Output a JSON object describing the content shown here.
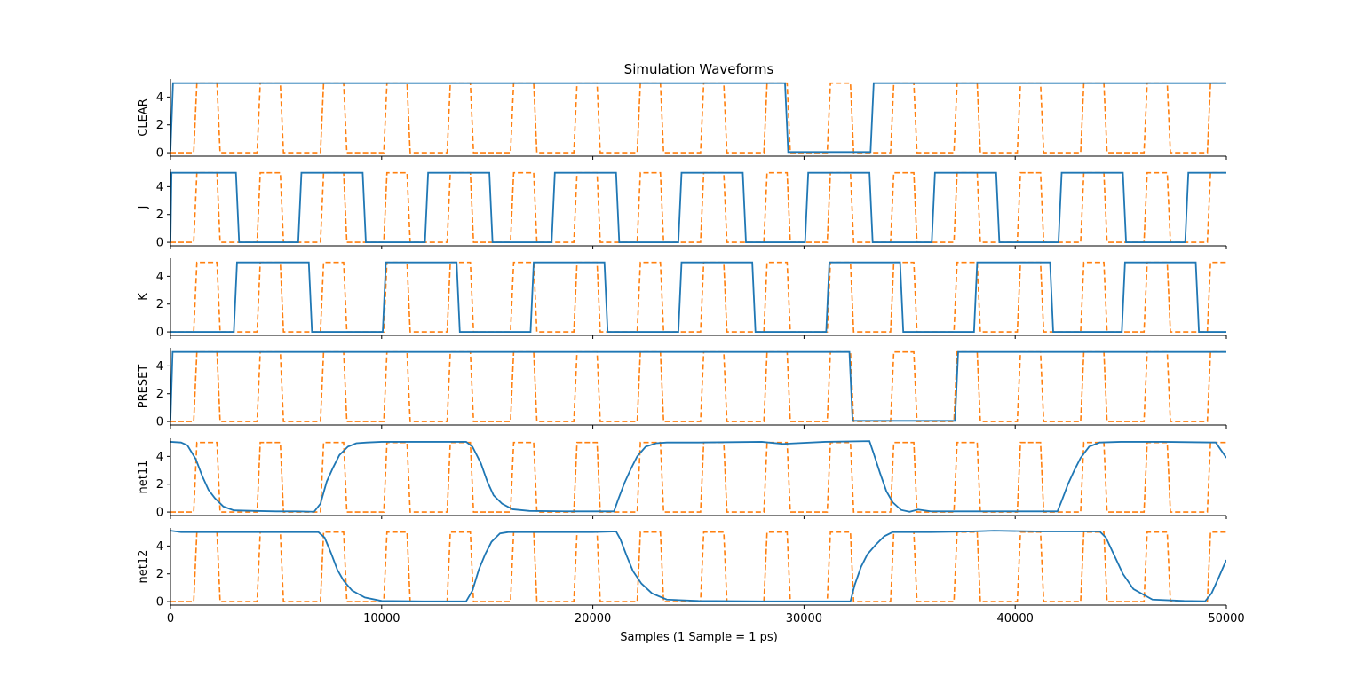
{
  "chart_data": {
    "type": "line",
    "title": "Simulation Waveforms",
    "xlabel": "Samples (1 Sample = 1 ps)",
    "xlim": [
      0,
      50000
    ],
    "x_ticks": [
      0,
      10000,
      20000,
      30000,
      40000,
      50000
    ],
    "y_ticks": [
      0,
      2,
      4
    ],
    "ylim": [
      -0.25,
      5.3
    ],
    "series_styles": {
      "signal": {
        "color": "#1f77b4",
        "dash": "solid"
      },
      "clock": {
        "color": "#ff7f0e",
        "dash": "dashed"
      }
    },
    "clock": {
      "name": "clock",
      "high": 5,
      "low": 0,
      "first_rise": 1100,
      "period": 3000,
      "high_time": 1100,
      "edge_time": 150
    },
    "panels": [
      {
        "ylabel": "CLEAR",
        "signal": {
          "x": [
            0,
            120,
            29100,
            29250,
            33150,
            33300,
            50000
          ],
          "y": [
            0.1,
            5,
            5,
            0.05,
            0.05,
            5,
            5
          ]
        }
      },
      {
        "ylabel": "J",
        "signal": {
          "x": [
            0,
            50,
            3100,
            3250,
            6050,
            6200,
            9100,
            9250,
            12050,
            12200,
            15100,
            15250,
            18050,
            18200,
            21100,
            21250,
            24050,
            24200,
            27100,
            27250,
            30050,
            30200,
            33100,
            33250,
            36050,
            36200,
            39100,
            39250,
            42050,
            42200,
            45100,
            45250,
            48050,
            48200,
            50000
          ],
          "y": [
            0,
            5,
            5,
            0,
            0,
            5,
            5,
            0,
            0,
            5,
            5,
            0,
            0,
            5,
            5,
            0,
            0,
            5,
            5,
            0,
            0,
            5,
            5,
            0,
            0,
            5,
            5,
            0,
            0,
            5,
            5,
            0,
            0,
            5,
            5
          ]
        }
      },
      {
        "ylabel": "K",
        "signal": {
          "x": [
            0,
            3000,
            3150,
            6550,
            6700,
            10050,
            10200,
            13550,
            13700,
            17050,
            17200,
            20550,
            20700,
            24050,
            24200,
            27550,
            27700,
            31050,
            31200,
            34550,
            34700,
            38050,
            38200,
            41650,
            41800,
            45050,
            45200,
            48550,
            48700,
            50000
          ],
          "y": [
            0,
            0,
            5,
            5,
            0,
            0,
            5,
            5,
            0,
            0,
            5,
            5,
            0,
            0,
            5,
            5,
            0,
            0,
            5,
            5,
            0,
            0,
            5,
            5,
            0,
            0,
            5,
            5,
            0,
            0
          ]
        }
      },
      {
        "ylabel": "PRESET",
        "signal": {
          "x": [
            0,
            100,
            32150,
            32300,
            37150,
            37300,
            50000
          ],
          "y": [
            0.1,
            5,
            5,
            0.05,
            0.05,
            5,
            5
          ]
        }
      },
      {
        "ylabel": "net11",
        "signal": {
          "x": [
            0,
            500,
            800,
            1200,
            1500,
            1800,
            2100,
            2500,
            3000,
            4000,
            5000,
            6000,
            6800,
            7100,
            7400,
            7700,
            8000,
            8400,
            8800,
            9300,
            10000,
            12000,
            14000,
            14300,
            14700,
            15000,
            15300,
            15700,
            16200,
            17000,
            19000,
            21000,
            21200,
            21500,
            21800,
            22100,
            22500,
            23000,
            23500,
            25000,
            28000,
            29000,
            31000,
            33100,
            33300,
            33600,
            33900,
            34200,
            34600,
            35000,
            35400,
            36000,
            38000,
            42000,
            42200,
            42500,
            42800,
            43100,
            43500,
            44000,
            45000,
            47000,
            49500,
            50000
          ],
          "y": [
            5.05,
            5.0,
            4.8,
            3.8,
            2.6,
            1.6,
            1.0,
            0.4,
            0.12,
            0.08,
            0.05,
            0.05,
            0.02,
            0.6,
            2.2,
            3.2,
            4.1,
            4.7,
            4.95,
            5.0,
            5.05,
            5.05,
            5.05,
            4.7,
            3.5,
            2.2,
            1.2,
            0.6,
            0.2,
            0.08,
            0.05,
            0.05,
            0.9,
            2.1,
            3.1,
            4.0,
            4.7,
            4.95,
            5.0,
            5.0,
            5.05,
            4.9,
            5.05,
            5.1,
            4.2,
            2.8,
            1.5,
            0.7,
            0.15,
            0.02,
            0.18,
            0.05,
            0.05,
            0.05,
            0.8,
            2.0,
            3.0,
            3.9,
            4.7,
            5.0,
            5.05,
            5.05,
            5.0,
            3.9
          ]
        }
      },
      {
        "ylabel": "net12",
        "signal": {
          "x": [
            0,
            500,
            2000,
            4000,
            6000,
            7000,
            7300,
            7600,
            7900,
            8200,
            8600,
            9200,
            10000,
            12000,
            14000,
            14300,
            14600,
            14900,
            15200,
            15600,
            16000,
            18000,
            20000,
            21100,
            21300,
            21600,
            21900,
            22300,
            22800,
            23500,
            25000,
            28000,
            32200,
            32400,
            32700,
            33000,
            33400,
            33800,
            34200,
            36000,
            38000,
            39000,
            41000,
            44000,
            44300,
            44700,
            45100,
            45600,
            46500,
            48000,
            49000,
            49300,
            49600,
            50000
          ],
          "y": [
            5.1,
            5.0,
            5.0,
            5.0,
            5.0,
            5.0,
            4.6,
            3.5,
            2.3,
            1.5,
            0.8,
            0.3,
            0.05,
            0.02,
            0.02,
            0.8,
            2.3,
            3.4,
            4.3,
            4.9,
            5.0,
            5.0,
            5.0,
            5.05,
            4.5,
            3.3,
            2.2,
            1.3,
            0.6,
            0.15,
            0.05,
            0.02,
            0.02,
            1.2,
            2.5,
            3.4,
            4.1,
            4.7,
            5.0,
            5.0,
            5.05,
            5.1,
            5.05,
            5.05,
            4.6,
            3.3,
            2.0,
            0.9,
            0.15,
            0.05,
            0.03,
            0.6,
            1.6,
            3.0
          ]
        }
      }
    ]
  }
}
